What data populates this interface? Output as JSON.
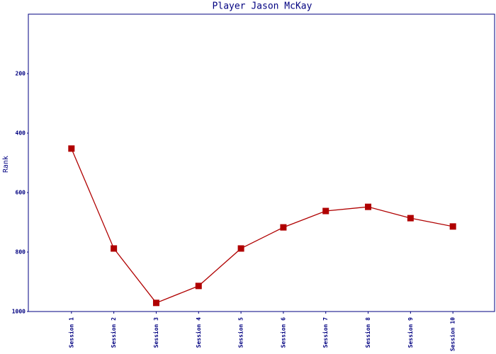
{
  "chart_data": {
    "type": "line",
    "title": "Player Jason McKay",
    "y_label": "Rank",
    "categories": [
      "Session 1",
      "Session 2",
      "Session 3",
      "Session 4",
      "Session 5",
      "Session 6",
      "Session 7",
      "Session 8",
      "Session 9",
      "Session 10"
    ],
    "series": [
      {
        "name": "Rank",
        "color": "#b00000",
        "values": [
          452,
          788,
          971,
          914,
          788,
          717,
          662,
          648,
          686,
          714
        ]
      }
    ],
    "ylim": [
      0,
      1000
    ],
    "y_inverted": true,
    "yticks": [
      200,
      400,
      600,
      800,
      1000
    ],
    "grid": false
  }
}
